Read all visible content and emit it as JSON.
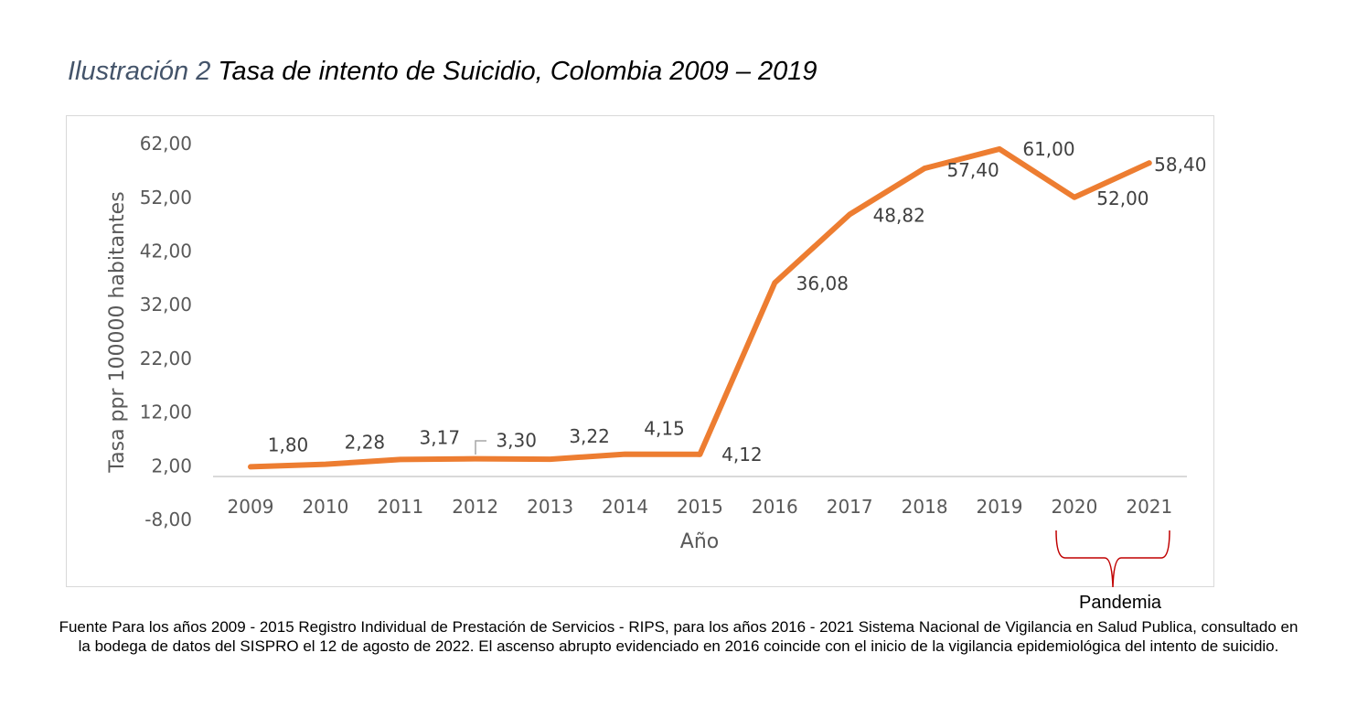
{
  "title": {
    "prefix": "Ilustración 2",
    "text": "Tasa de intento de Suicidio, Colombia 2009 – 2019"
  },
  "chart_data": {
    "type": "line",
    "xlabel": "Año",
    "ylabel": "Tasa ppr 100000 habitantes",
    "categories": [
      "2009",
      "2010",
      "2011",
      "2012",
      "2013",
      "2014",
      "2015",
      "2016",
      "2017",
      "2018",
      "2019",
      "2020",
      "2021"
    ],
    "values": [
      1.8,
      2.28,
      3.17,
      3.3,
      3.22,
      4.15,
      4.12,
      36.08,
      48.82,
      57.4,
      61.0,
      52.0,
      58.4
    ],
    "data_labels": [
      "1,80",
      "2,28",
      "3,17",
      "3,30",
      "3,22",
      "4,15",
      "4,12",
      "36,08",
      "48,82",
      "57,40",
      "61,00",
      "52,00",
      "58,40"
    ],
    "yticks": [
      "-8,00",
      "2,00",
      "12,00",
      "22,00",
      "32,00",
      "42,00",
      "52,00",
      "62,00"
    ],
    "ytick_values": [
      -8,
      2,
      12,
      22,
      32,
      42,
      52,
      62
    ],
    "ylim": [
      -8,
      62
    ],
    "grid": false,
    "line_color": "#ed7d31",
    "annotation": {
      "text": "Pandemia",
      "range": [
        "2020",
        "2021"
      ],
      "color": "#c00000"
    }
  },
  "source_note": "Fuente Para los años 2009 - 2015 Registro Individual de Prestación de Servicios - RIPS, para los años 2016 - 2021 Sistema Nacional de Vigilancia en Salud Publica, consultado en la bodega de datos del SISPRO el 12 de agosto de 2022.  El ascenso abrupto evidenciado en 2016 coincide con el inicio de la vigilancia epidemiológica del intento de suicidio."
}
